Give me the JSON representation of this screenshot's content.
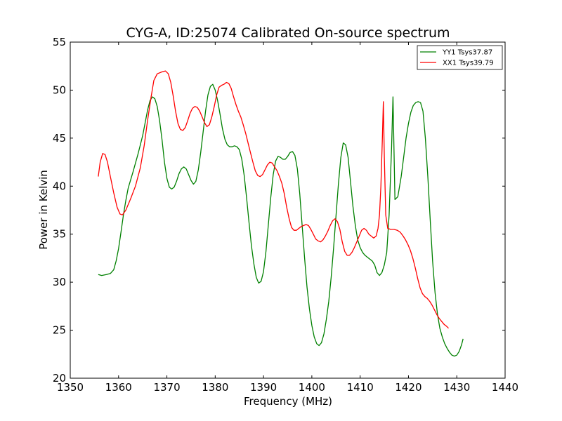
{
  "chart_data": {
    "type": "line",
    "title": "CYG-A, ID:25074 Calibrated On-source spectrum",
    "xlabel": "Frequency (MHz)",
    "ylabel": "Power in Kelvin",
    "xlim": [
      1350,
      1440
    ],
    "ylim": [
      20,
      55
    ],
    "xticks": [
      1350,
      1360,
      1370,
      1380,
      1390,
      1400,
      1410,
      1420,
      1430,
      1440
    ],
    "yticks": [
      20,
      25,
      30,
      35,
      40,
      45,
      50,
      55
    ],
    "grid": false,
    "legend_position": "top-right",
    "series": [
      {
        "name": "YY1 Tsys37.87",
        "color": "#008000",
        "points": [
          [
            1355.8,
            30.8
          ],
          [
            1356.5,
            30.7
          ],
          [
            1357.5,
            30.8
          ],
          [
            1358.3,
            30.9
          ],
          [
            1359,
            31.3
          ],
          [
            1359.5,
            32.2
          ],
          [
            1360,
            33.5
          ],
          [
            1360.5,
            35.2
          ],
          [
            1361,
            37.0
          ],
          [
            1361.5,
            38.5
          ],
          [
            1362,
            39.8
          ],
          [
            1363,
            41.5
          ],
          [
            1364,
            43.3
          ],
          [
            1365,
            45.3
          ],
          [
            1366,
            47.9
          ],
          [
            1366.5,
            48.9
          ],
          [
            1367,
            49.3
          ],
          [
            1367.5,
            49.1
          ],
          [
            1368,
            48.3
          ],
          [
            1368.5,
            46.8
          ],
          [
            1369,
            44.8
          ],
          [
            1369.5,
            42.5
          ],
          [
            1370,
            40.8
          ],
          [
            1370.5,
            39.9
          ],
          [
            1371,
            39.7
          ],
          [
            1371.5,
            39.9
          ],
          [
            1372,
            40.5
          ],
          [
            1372.5,
            41.3
          ],
          [
            1373,
            41.8
          ],
          [
            1373.5,
            42.0
          ],
          [
            1374,
            41.8
          ],
          [
            1374.5,
            41.2
          ],
          [
            1375,
            40.6
          ],
          [
            1375.5,
            40.2
          ],
          [
            1376,
            40.5
          ],
          [
            1376.5,
            41.7
          ],
          [
            1377,
            43.5
          ],
          [
            1377.5,
            45.6
          ],
          [
            1378,
            47.8
          ],
          [
            1378.5,
            49.5
          ],
          [
            1379,
            50.4
          ],
          [
            1379.5,
            50.6
          ],
          [
            1380,
            50.0
          ],
          [
            1380.5,
            48.9
          ],
          [
            1381,
            47.5
          ],
          [
            1381.5,
            46.0
          ],
          [
            1382,
            44.9
          ],
          [
            1382.5,
            44.3
          ],
          [
            1383,
            44.1
          ],
          [
            1383.5,
            44.1
          ],
          [
            1384,
            44.2
          ],
          [
            1384.5,
            44.1
          ],
          [
            1385,
            43.8
          ],
          [
            1385.5,
            42.8
          ],
          [
            1386,
            41.1
          ],
          [
            1386.5,
            38.8
          ],
          [
            1387,
            36.2
          ],
          [
            1387.5,
            33.8
          ],
          [
            1388,
            31.9
          ],
          [
            1388.5,
            30.5
          ],
          [
            1389,
            29.9
          ],
          [
            1389.5,
            30.1
          ],
          [
            1390,
            31.1
          ],
          [
            1390.5,
            33.2
          ],
          [
            1391,
            36.0
          ],
          [
            1391.5,
            38.8
          ],
          [
            1392,
            41.2
          ],
          [
            1392.5,
            42.6
          ],
          [
            1393,
            43.1
          ],
          [
            1393.5,
            43.0
          ],
          [
            1394,
            42.8
          ],
          [
            1394.5,
            42.8
          ],
          [
            1395,
            43.1
          ],
          [
            1395.5,
            43.5
          ],
          [
            1396,
            43.6
          ],
          [
            1396.5,
            43.2
          ],
          [
            1397,
            41.8
          ],
          [
            1397.5,
            39.2
          ],
          [
            1398,
            35.9
          ],
          [
            1398.5,
            32.5
          ],
          [
            1399,
            29.5
          ],
          [
            1399.5,
            27.2
          ],
          [
            1400,
            25.5
          ],
          [
            1400.5,
            24.3
          ],
          [
            1401,
            23.6
          ],
          [
            1401.5,
            23.4
          ],
          [
            1402,
            23.7
          ],
          [
            1402.5,
            24.6
          ],
          [
            1403,
            26.1
          ],
          [
            1403.5,
            28.0
          ],
          [
            1404,
            30.5
          ],
          [
            1404.5,
            33.5
          ],
          [
            1405,
            36.9
          ],
          [
            1405.5,
            40.2
          ],
          [
            1406,
            43.0
          ],
          [
            1406.5,
            44.5
          ],
          [
            1407,
            44.3
          ],
          [
            1407.5,
            43.0
          ],
          [
            1408,
            40.5
          ],
          [
            1408.5,
            37.9
          ],
          [
            1409,
            35.9
          ],
          [
            1409.5,
            34.4
          ],
          [
            1410,
            33.6
          ],
          [
            1410.5,
            33.1
          ],
          [
            1411,
            32.8
          ],
          [
            1411.5,
            32.6
          ],
          [
            1412,
            32.4
          ],
          [
            1412.5,
            32.2
          ],
          [
            1413,
            31.8
          ],
          [
            1413.5,
            31.0
          ],
          [
            1414,
            30.7
          ],
          [
            1414.5,
            31.0
          ],
          [
            1415,
            31.8
          ],
          [
            1415.5,
            33.1
          ],
          [
            1416,
            37.0
          ],
          [
            1416.5,
            44.0
          ],
          [
            1416.8,
            49.3
          ],
          [
            1417.2,
            38.6
          ],
          [
            1417.8,
            38.9
          ],
          [
            1418.5,
            41.0
          ],
          [
            1419,
            43.0
          ],
          [
            1419.5,
            45.0
          ],
          [
            1420,
            46.5
          ],
          [
            1420.5,
            47.7
          ],
          [
            1421,
            48.4
          ],
          [
            1421.5,
            48.7
          ],
          [
            1422,
            48.8
          ],
          [
            1422.5,
            48.7
          ],
          [
            1423,
            47.8
          ],
          [
            1423.5,
            45.0
          ],
          [
            1424,
            41.0
          ],
          [
            1424.5,
            36.5
          ],
          [
            1425,
            32.2
          ],
          [
            1425.5,
            28.9
          ],
          [
            1426,
            26.7
          ],
          [
            1426.5,
            25.2
          ],
          [
            1427,
            24.3
          ],
          [
            1427.5,
            23.6
          ],
          [
            1428,
            23.1
          ],
          [
            1428.5,
            22.7
          ],
          [
            1429,
            22.4
          ],
          [
            1429.5,
            22.3
          ],
          [
            1430,
            22.4
          ],
          [
            1430.5,
            22.8
          ],
          [
            1431,
            23.5
          ],
          [
            1431.3,
            24.1
          ]
        ]
      },
      {
        "name": "XX1 Tsys39.79",
        "color": "#ff0000",
        "points": [
          [
            1355.8,
            41.0
          ],
          [
            1356.2,
            42.5
          ],
          [
            1356.7,
            43.4
          ],
          [
            1357.2,
            43.3
          ],
          [
            1357.7,
            42.5
          ],
          [
            1358.3,
            41.0
          ],
          [
            1359,
            39.3
          ],
          [
            1359.7,
            37.8
          ],
          [
            1360.3,
            37.1
          ],
          [
            1360.8,
            37.0
          ],
          [
            1361.5,
            37.5
          ],
          [
            1362.5,
            38.7
          ],
          [
            1363.5,
            40.0
          ],
          [
            1364.5,
            41.9
          ],
          [
            1365.3,
            44.2
          ],
          [
            1366,
            46.8
          ],
          [
            1366.7,
            49.2
          ],
          [
            1367.3,
            51.0
          ],
          [
            1368,
            51.7
          ],
          [
            1369,
            51.9
          ],
          [
            1369.7,
            52.0
          ],
          [
            1370.3,
            51.7
          ],
          [
            1370.8,
            50.8
          ],
          [
            1371.3,
            49.4
          ],
          [
            1371.8,
            47.8
          ],
          [
            1372.3,
            46.5
          ],
          [
            1372.8,
            45.9
          ],
          [
            1373.3,
            45.8
          ],
          [
            1373.8,
            46.1
          ],
          [
            1374.3,
            46.8
          ],
          [
            1374.8,
            47.6
          ],
          [
            1375.3,
            48.1
          ],
          [
            1375.8,
            48.3
          ],
          [
            1376.3,
            48.2
          ],
          [
            1376.8,
            47.8
          ],
          [
            1377.3,
            47.2
          ],
          [
            1377.8,
            46.6
          ],
          [
            1378.3,
            46.2
          ],
          [
            1378.8,
            46.4
          ],
          [
            1379.3,
            47.2
          ],
          [
            1379.8,
            48.3
          ],
          [
            1380.3,
            49.5
          ],
          [
            1380.8,
            50.3
          ],
          [
            1381.3,
            50.5
          ],
          [
            1381.8,
            50.6
          ],
          [
            1382.3,
            50.8
          ],
          [
            1382.8,
            50.7
          ],
          [
            1383.3,
            50.2
          ],
          [
            1383.8,
            49.3
          ],
          [
            1384.3,
            48.5
          ],
          [
            1384.8,
            47.8
          ],
          [
            1385.3,
            47.2
          ],
          [
            1385.8,
            46.4
          ],
          [
            1386.3,
            45.5
          ],
          [
            1386.8,
            44.5
          ],
          [
            1387.3,
            43.5
          ],
          [
            1387.8,
            42.5
          ],
          [
            1388.3,
            41.6
          ],
          [
            1388.8,
            41.1
          ],
          [
            1389.3,
            41.0
          ],
          [
            1389.8,
            41.2
          ],
          [
            1390.3,
            41.7
          ],
          [
            1390.8,
            42.2
          ],
          [
            1391.3,
            42.5
          ],
          [
            1391.8,
            42.4
          ],
          [
            1392.3,
            42.0
          ],
          [
            1392.8,
            41.6
          ],
          [
            1393.3,
            41.0
          ],
          [
            1393.8,
            40.3
          ],
          [
            1394.3,
            39.2
          ],
          [
            1394.8,
            37.8
          ],
          [
            1395.3,
            36.6
          ],
          [
            1395.8,
            35.7
          ],
          [
            1396.3,
            35.4
          ],
          [
            1396.8,
            35.4
          ],
          [
            1397.3,
            35.6
          ],
          [
            1397.8,
            35.8
          ],
          [
            1398.3,
            35.9
          ],
          [
            1398.8,
            36.0
          ],
          [
            1399.3,
            35.9
          ],
          [
            1399.8,
            35.5
          ],
          [
            1400.3,
            35.0
          ],
          [
            1400.8,
            34.5
          ],
          [
            1401.3,
            34.3
          ],
          [
            1401.8,
            34.2
          ],
          [
            1402.3,
            34.4
          ],
          [
            1402.8,
            34.8
          ],
          [
            1403.3,
            35.3
          ],
          [
            1403.8,
            35.9
          ],
          [
            1404.3,
            36.4
          ],
          [
            1404.8,
            36.6
          ],
          [
            1405.3,
            36.3
          ],
          [
            1405.8,
            35.5
          ],
          [
            1406.3,
            34.2
          ],
          [
            1406.8,
            33.2
          ],
          [
            1407.3,
            32.8
          ],
          [
            1407.8,
            32.8
          ],
          [
            1408.3,
            33.1
          ],
          [
            1408.8,
            33.6
          ],
          [
            1409.3,
            34.2
          ],
          [
            1409.8,
            34.8
          ],
          [
            1410.3,
            35.4
          ],
          [
            1410.8,
            35.6
          ],
          [
            1411.3,
            35.4
          ],
          [
            1411.8,
            35.0
          ],
          [
            1412.3,
            34.8
          ],
          [
            1412.8,
            34.6
          ],
          [
            1413.3,
            34.8
          ],
          [
            1413.7,
            35.6
          ],
          [
            1414,
            37.0
          ],
          [
            1414.3,
            40.0
          ],
          [
            1414.6,
            45.0
          ],
          [
            1414.8,
            48.8
          ],
          [
            1415.0,
            43.0
          ],
          [
            1415.3,
            37.0
          ],
          [
            1415.7,
            35.6
          ],
          [
            1416.3,
            35.5
          ],
          [
            1417,
            35.5
          ],
          [
            1417.7,
            35.4
          ],
          [
            1418.3,
            35.2
          ],
          [
            1418.9,
            34.8
          ],
          [
            1419.4,
            34.4
          ],
          [
            1419.9,
            33.9
          ],
          [
            1420.4,
            33.3
          ],
          [
            1420.9,
            32.5
          ],
          [
            1421.4,
            31.5
          ],
          [
            1421.9,
            30.4
          ],
          [
            1422.4,
            29.4
          ],
          [
            1422.9,
            28.8
          ],
          [
            1423.4,
            28.5
          ],
          [
            1423.9,
            28.3
          ],
          [
            1424.4,
            28.0
          ],
          [
            1424.9,
            27.6
          ],
          [
            1425.4,
            27.1
          ],
          [
            1425.9,
            26.6
          ],
          [
            1426.4,
            26.2
          ],
          [
            1426.9,
            25.9
          ],
          [
            1427.4,
            25.6
          ],
          [
            1427.9,
            25.4
          ],
          [
            1428.3,
            25.2
          ]
        ]
      }
    ]
  }
}
